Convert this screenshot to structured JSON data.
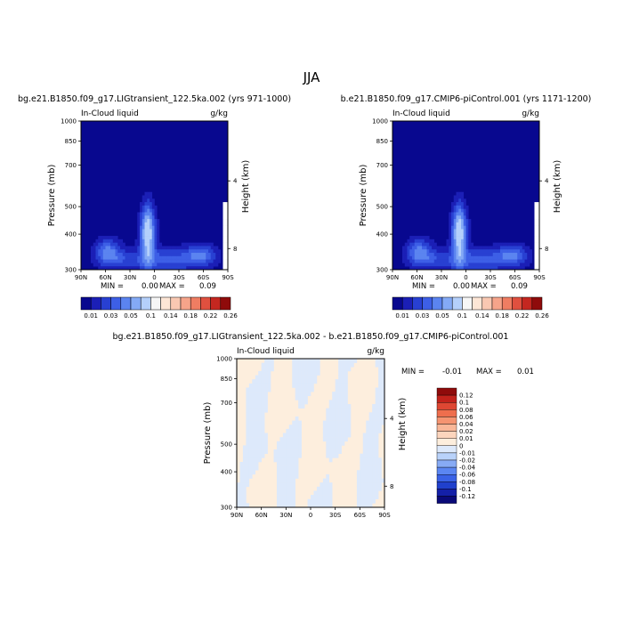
{
  "page": {
    "title": "JJA"
  },
  "colors": {
    "abs_scale": [
      "#08088f",
      "#1b1fb6",
      "#2840d2",
      "#3d5fe6",
      "#5b84f0",
      "#84aaf6",
      "#b4d0fb",
      "#f6f6f6",
      "#fde6d6",
      "#f9c8b2",
      "#f6a48a",
      "#ef7d62",
      "#e0503f",
      "#c42720",
      "#8f0b0b"
    ],
    "diff_scale": [
      "#0a0a78",
      "#1420a8",
      "#2040cc",
      "#3a62e6",
      "#5b86f2",
      "#87abf5",
      "#b9d2fa",
      "#dde9fb",
      "#fdeedd",
      "#fcd5bd",
      "#f9b798",
      "#f59471",
      "#ee6e4d",
      "#de4733",
      "#c2221b",
      "#8f0b0b"
    ]
  },
  "chart_data": [
    {
      "type": "heatmap",
      "title": "bg.e21.B1850.f09_g17.LIGtransient_122.5ka.002 (yrs 971-1000)",
      "field_label": "In-Cloud liquid",
      "units": "g/kg",
      "ylabel": "Pressure (mb)",
      "ylabel_right": "Height (km)",
      "x_ticks": [
        "90N",
        "60N",
        "30N",
        "0",
        "30S",
        "60S",
        "90S"
      ],
      "y_ticks": [
        "300",
        "400",
        "500",
        "700",
        "850",
        "1000"
      ],
      "y_ticks_right": [
        "8",
        "4"
      ],
      "xlim": [
        90,
        -90
      ],
      "ylim": [
        1000,
        300
      ],
      "min_label": "MIN =",
      "min_value": "0.00",
      "max_label": "MAX =",
      "max_value": "0.09",
      "colorbar_levels": [
        "0.01",
        "0.03",
        "0.05",
        "0.1",
        "0.14",
        "0.18",
        "0.22",
        "0.26"
      ]
    },
    {
      "type": "heatmap",
      "title": "b.e21.B1850.f09_g17.CMIP6-piControl.001 (yrs 1171-1200)",
      "field_label": "In-Cloud liquid",
      "units": "g/kg",
      "ylabel": "Pressure (mb)",
      "ylabel_right": "Height (km)",
      "x_ticks": [
        "90N",
        "60N",
        "30N",
        "0",
        "30S",
        "60S",
        "90S"
      ],
      "y_ticks": [
        "300",
        "400",
        "500",
        "700",
        "850",
        "1000"
      ],
      "y_ticks_right": [
        "8",
        "4"
      ],
      "xlim": [
        90,
        -90
      ],
      "ylim": [
        1000,
        300
      ],
      "min_label": "MIN =",
      "min_value": "0.00",
      "max_label": "MAX =",
      "max_value": "0.09",
      "colorbar_levels": [
        "0.01",
        "0.03",
        "0.05",
        "0.1",
        "0.14",
        "0.18",
        "0.22",
        "0.26"
      ]
    },
    {
      "type": "heatmap",
      "title": "bg.e21.B1850.f09_g17.LIGtransient_122.5ka.002 - b.e21.B1850.f09_g17.CMIP6-piControl.001",
      "field_label": "In-Cloud liquid",
      "units": "g/kg",
      "ylabel": "Pressure (mb)",
      "ylabel_right": "Height (km)",
      "x_ticks": [
        "90N",
        "60N",
        "30N",
        "0",
        "30S",
        "60S",
        "90S"
      ],
      "y_ticks": [
        "300",
        "400",
        "500",
        "700",
        "850",
        "1000"
      ],
      "y_ticks_right": [
        "8",
        "4"
      ],
      "xlim": [
        90,
        -90
      ],
      "ylim": [
        1000,
        300
      ],
      "min_label": "MIN =",
      "min_value": "-0.01",
      "max_label": "MAX =",
      "max_value": "0.01",
      "colorbar_levels": [
        "0.12",
        "0.1",
        "0.08",
        "0.06",
        "0.04",
        "0.02",
        "0.01",
        "0",
        "-0.01",
        "-0.02",
        "-0.04",
        "-0.06",
        "-0.08",
        "-0.1",
        "-0.12"
      ]
    }
  ]
}
